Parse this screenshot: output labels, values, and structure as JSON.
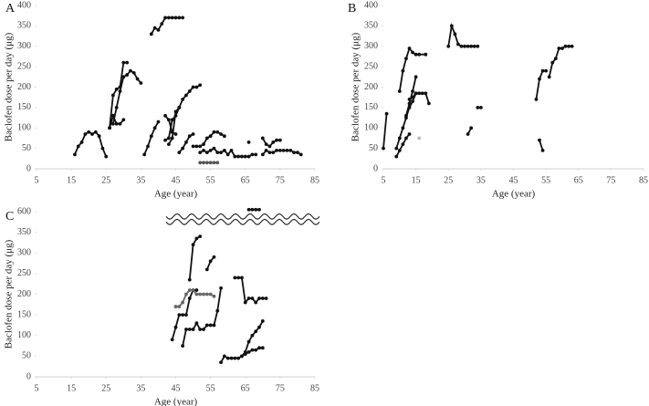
{
  "chart_data": [
    {
      "type": "line",
      "panel_label": "A",
      "x_label": "Age (year)",
      "y_label": "Baclofen dose per day (μg)",
      "xlim": [
        5,
        85
      ],
      "xticks": [
        5,
        15,
        25,
        35,
        45,
        55,
        65,
        75,
        85
      ],
      "ylim": [
        0,
        400
      ],
      "yticks": [
        0,
        50,
        100,
        150,
        200,
        250,
        300,
        350,
        400
      ],
      "series": [
        {
          "color": "#111",
          "x": [
            16,
            17,
            18,
            19,
            20,
            21,
            22,
            23,
            24,
            25
          ],
          "values": [
            35,
            55,
            65,
            85,
            90,
            85,
            90,
            80,
            50,
            30
          ]
        },
        {
          "color": "#111",
          "x": [
            26,
            27,
            28,
            29,
            30
          ],
          "values": [
            100,
            130,
            110,
            110,
            120
          ]
        },
        {
          "color": "#111",
          "x": [
            26,
            27,
            28,
            29,
            30,
            31
          ],
          "values": [
            100,
            180,
            195,
            200,
            260,
            260
          ]
        },
        {
          "color": "#111",
          "x": [
            27,
            28,
            29,
            30,
            31,
            32,
            33,
            34,
            35
          ],
          "values": [
            110,
            150,
            190,
            225,
            230,
            240,
            235,
            220,
            210
          ]
        },
        {
          "color": "#111",
          "x": [
            36,
            37,
            38,
            39,
            40
          ],
          "values": [
            35,
            55,
            80,
            100,
            115
          ]
        },
        {
          "color": "#111",
          "x": [
            38,
            39,
            40,
            41,
            42,
            43,
            44,
            45,
            46,
            47
          ],
          "values": [
            330,
            345,
            340,
            355,
            370,
            370,
            370,
            370,
            370,
            370
          ]
        },
        {
          "color": "#111",
          "x": [
            42,
            43,
            44,
            45,
            46,
            47,
            48,
            49,
            50,
            51,
            52
          ],
          "values": [
            70,
            75,
            120,
            130,
            150,
            170,
            180,
            190,
            200,
            200,
            205
          ]
        },
        {
          "color": "#111",
          "x": [
            42,
            43,
            44,
            45
          ],
          "values": [
            130,
            120,
            90,
            85
          ]
        },
        {
          "color": "#111",
          "x": [
            43,
            44,
            45,
            46
          ],
          "values": [
            60,
            75,
            140,
            150
          ]
        },
        {
          "color": "#111",
          "x": [
            46,
            47,
            48,
            49,
            50
          ],
          "values": [
            40,
            50,
            65,
            80,
            85
          ]
        },
        {
          "color": "#111",
          "x": [
            50,
            51,
            52,
            53,
            54,
            55,
            56,
            57,
            58,
            59
          ],
          "values": [
            55,
            55,
            55,
            60,
            75,
            80,
            90,
            90,
            85,
            80
          ]
        },
        {
          "color": "#555",
          "x": [
            52,
            53,
            54,
            55,
            56,
            57
          ],
          "values": [
            15,
            15,
            15,
            15,
            15,
            15
          ]
        },
        {
          "color": "#111",
          "x": [
            52,
            53,
            54,
            55,
            56,
            57,
            58,
            59,
            60,
            61,
            62,
            63,
            64,
            65,
            66,
            67,
            68
          ],
          "values": [
            40,
            45,
            40,
            45,
            50,
            40,
            40,
            45,
            35,
            45,
            30,
            30,
            30,
            30,
            30,
            35,
            35
          ]
        },
        {
          "color": "#111",
          "x": [
            66
          ],
          "values": [
            65
          ]
        },
        {
          "color": "#111",
          "x": [
            70,
            71,
            72,
            73,
            74,
            75
          ],
          "values": [
            75,
            60,
            55,
            65,
            70,
            70
          ]
        },
        {
          "color": "#111",
          "x": [
            70,
            71,
            72,
            73,
            74,
            75,
            76,
            77,
            78,
            79,
            80,
            81
          ],
          "values": [
            35,
            45,
            40,
            40,
            45,
            45,
            45,
            45,
            45,
            40,
            40,
            35
          ]
        }
      ]
    },
    {
      "type": "line",
      "panel_label": "B",
      "x_label": "Age (year)",
      "y_label": "Baclofen dose per day (μg)",
      "xlim": [
        5,
        85
      ],
      "xticks": [
        5,
        15,
        25,
        35,
        45,
        55,
        65,
        75,
        85
      ],
      "ylim": [
        0,
        400
      ],
      "yticks": [
        0,
        50,
        100,
        150,
        200,
        250,
        300,
        350,
        400
      ],
      "series": [
        {
          "color": "#111",
          "x": [
            5,
            6
          ],
          "values": [
            50,
            135
          ]
        },
        {
          "color": "#111",
          "x": [
            9,
            10,
            11,
            12,
            13
          ],
          "values": [
            30,
            45,
            60,
            75,
            85
          ]
        },
        {
          "color": "#111",
          "x": [
            9,
            10,
            11,
            12,
            13,
            14,
            15,
            16,
            17,
            18,
            19
          ],
          "values": [
            50,
            75,
            100,
            125,
            150,
            165,
            185,
            185,
            185,
            185,
            160
          ]
        },
        {
          "color": "#111",
          "x": [
            10,
            11,
            12,
            13,
            14,
            15,
            16,
            18
          ],
          "values": [
            190,
            240,
            270,
            295,
            285,
            280,
            280,
            280
          ]
        },
        {
          "color": "#111",
          "x": [
            12,
            13,
            14,
            15
          ],
          "values": [
            130,
            160,
            190,
            225
          ]
        },
        {
          "color": "#111",
          "x": [
            13,
            14,
            15
          ],
          "values": [
            170,
            175,
            185
          ]
        },
        {
          "color": "#bbb",
          "x": [
            16
          ],
          "values": [
            75
          ]
        },
        {
          "color": "#111",
          "x": [
            25,
            26,
            27,
            28,
            29,
            30,
            31,
            32,
            33,
            34
          ],
          "values": [
            300,
            350,
            330,
            305,
            300,
            300,
            300,
            300,
            300,
            300
          ]
        },
        {
          "color": "#111",
          "x": [
            31,
            32
          ],
          "values": [
            85,
            100
          ]
        },
        {
          "color": "#111",
          "x": [
            34,
            35
          ],
          "values": [
            150,
            150
          ]
        },
        {
          "color": "#111",
          "x": [
            52,
            53,
            54,
            55
          ],
          "values": [
            170,
            220,
            240,
            240
          ]
        },
        {
          "color": "#111",
          "x": [
            53,
            54
          ],
          "values": [
            70,
            45
          ]
        },
        {
          "color": "#111",
          "x": [
            56,
            57,
            58,
            59,
            60,
            61,
            62,
            63
          ],
          "values": [
            225,
            260,
            270,
            295,
            295,
            300,
            300,
            300
          ]
        }
      ]
    },
    {
      "type": "line",
      "panel_label": "C",
      "x_label": "Age (year)",
      "y_label": "Baclofen dose per day (μg)",
      "xlim": [
        5,
        85
      ],
      "xticks": [
        5,
        15,
        25,
        35,
        45,
        55,
        65,
        75,
        85
      ],
      "ylim": [
        0,
        600
      ],
      "ybreak": [
        375,
        575
      ],
      "yticks": [
        0,
        50,
        100,
        150,
        200,
        250,
        300,
        350,
        600
      ],
      "series": [
        {
          "color": "#111",
          "x": [
            44,
            45,
            46,
            47,
            48,
            49,
            50,
            51
          ],
          "values": [
            90,
            120,
            150,
            150,
            150,
            190,
            210,
            210
          ]
        },
        {
          "color": "#666",
          "x": [
            45,
            46,
            47,
            48,
            49,
            50,
            51,
            52,
            53,
            54,
            55,
            56
          ],
          "values": [
            170,
            170,
            180,
            200,
            210,
            210,
            200,
            200,
            200,
            200,
            200,
            195
          ]
        },
        {
          "color": "#111",
          "x": [
            47,
            48,
            49,
            50,
            51,
            52,
            53,
            54,
            55,
            56,
            57,
            58
          ],
          "values": [
            75,
            115,
            115,
            115,
            130,
            115,
            115,
            125,
            125,
            125,
            160,
            215
          ]
        },
        {
          "color": "#111",
          "x": [
            49,
            50,
            51,
            52
          ],
          "values": [
            235,
            320,
            335,
            340
          ]
        },
        {
          "color": "#111",
          "x": [
            54,
            55,
            56
          ],
          "values": [
            260,
            280,
            290
          ]
        },
        {
          "color": "#111",
          "x": [
            58,
            59,
            60,
            61,
            62,
            63,
            64,
            65,
            66,
            67,
            68,
            69,
            70
          ],
          "values": [
            35,
            50,
            45,
            45,
            45,
            45,
            50,
            55,
            60,
            65,
            65,
            70,
            70
          ]
        },
        {
          "color": "#111",
          "x": [
            62,
            63,
            64,
            65,
            66,
            67,
            68,
            69,
            70,
            71
          ],
          "values": [
            240,
            240,
            240,
            180,
            190,
            190,
            180,
            190,
            190,
            190
          ]
        },
        {
          "color": "#111",
          "x": [
            64,
            65,
            66,
            67,
            68,
            69,
            70
          ],
          "values": [
            50,
            60,
            85,
            100,
            110,
            120,
            135
          ]
        },
        {
          "color": "#111",
          "x": [
            66,
            67,
            68,
            69
          ],
          "values": [
            605,
            605,
            605,
            605
          ]
        }
      ]
    }
  ]
}
